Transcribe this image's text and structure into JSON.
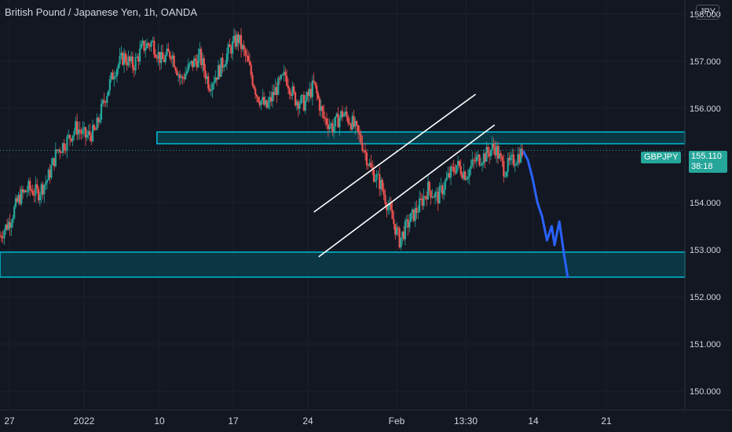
{
  "header": {
    "title": "British Pound / Japanese Yen, 1h, OANDA",
    "currency": "JPY"
  },
  "price_marker": {
    "symbol": "GBPJPY",
    "price": "155.110",
    "countdown": "38:18"
  },
  "colors": {
    "background": "#131722",
    "up": "#26a69a",
    "down": "#ef5350",
    "zone": "#00bcd4",
    "zone_fill": "#0b3d4a",
    "projection": "#2962ff",
    "channel": "#ffffff",
    "text": "#d1d4dc"
  },
  "chart_data": {
    "type": "candlestick",
    "y_ticks": [
      "158.000",
      "157.000",
      "156.000",
      "155.000",
      "154.000",
      "153.000",
      "152.000",
      "151.000",
      "150.000"
    ],
    "x_ticks": [
      "27",
      "2022",
      "10",
      "17",
      "24",
      "Feb",
      "13:30",
      "14",
      "21"
    ],
    "ylim": [
      149.6,
      158.3
    ],
    "price_path": [
      [
        0,
        153.3
      ],
      [
        1,
        153.6
      ],
      [
        2,
        154.1
      ],
      [
        3,
        154.3
      ],
      [
        4,
        154.2
      ],
      [
        5,
        154.5
      ],
      [
        6,
        155.1
      ],
      [
        7,
        155.3
      ],
      [
        8,
        155.6
      ],
      [
        9,
        155.4
      ],
      [
        10,
        155.5
      ],
      [
        11,
        156.2
      ],
      [
        12,
        156.8
      ],
      [
        13,
        157.1
      ],
      [
        14,
        156.9
      ],
      [
        15,
        157.3
      ],
      [
        16,
        157.4
      ],
      [
        17,
        157.0
      ],
      [
        18,
        157.2
      ],
      [
        19,
        156.6
      ],
      [
        20,
        156.9
      ],
      [
        21,
        157.1
      ],
      [
        22,
        156.5
      ],
      [
        23,
        156.8
      ],
      [
        24,
        157.2
      ],
      [
        25,
        157.5
      ],
      [
        26,
        157.0
      ],
      [
        27,
        156.3
      ],
      [
        28,
        156.0
      ],
      [
        29,
        156.4
      ],
      [
        30,
        156.7
      ],
      [
        31,
        156.2
      ],
      [
        32,
        156.1
      ],
      [
        33,
        156.5
      ],
      [
        34,
        155.8
      ],
      [
        35,
        155.6
      ],
      [
        36,
        155.9
      ],
      [
        37,
        155.7
      ],
      [
        38,
        155.3
      ],
      [
        39,
        154.7
      ],
      [
        40,
        154.4
      ],
      [
        41,
        153.8
      ],
      [
        42,
        153.2
      ],
      [
        43,
        153.6
      ],
      [
        44,
        153.9
      ],
      [
        45,
        154.3
      ],
      [
        46,
        154.1
      ],
      [
        47,
        154.5
      ],
      [
        48,
        154.8
      ],
      [
        49,
        154.6
      ],
      [
        50,
        154.9
      ],
      [
        51,
        155.0
      ],
      [
        52,
        155.2
      ],
      [
        53,
        154.7
      ],
      [
        54,
        154.9
      ],
      [
        55,
        155.1
      ]
    ],
    "projection_path": [
      [
        55,
        155.1
      ],
      [
        55.5,
        154.9
      ],
      [
        56,
        154.5
      ],
      [
        56.5,
        154.0
      ],
      [
        57,
        153.7
      ],
      [
        57.5,
        153.2
      ],
      [
        58,
        153.5
      ],
      [
        58.3,
        153.1
      ],
      [
        58.8,
        153.6
      ],
      [
        59.3,
        152.9
      ],
      [
        59.7,
        152.4
      ]
    ],
    "zones": [
      {
        "top": 155.5,
        "bottom": 155.25,
        "x_start": 16.5,
        "x_end": 72
      },
      {
        "top": 152.95,
        "bottom": 152.42,
        "x_start": 0,
        "x_end": 72
      }
    ],
    "channel_lines": [
      {
        "from": [
          33,
          153.8
        ],
        "to": [
          50,
          156.3
        ]
      },
      {
        "from": [
          33.5,
          152.85
        ],
        "to": [
          52,
          155.65
        ]
      }
    ],
    "last_price": 155.11
  }
}
